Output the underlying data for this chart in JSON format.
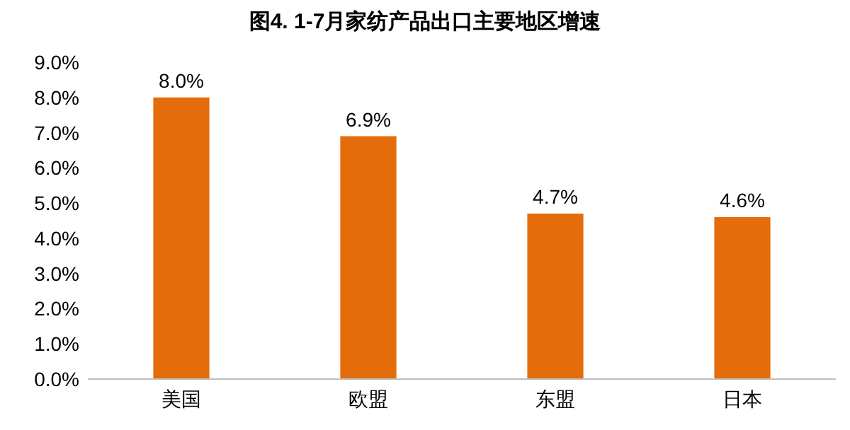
{
  "chart_data": {
    "type": "bar",
    "title": "图4. 1-7月家纺产品出口主要地区增速",
    "categories": [
      "美国",
      "欧盟",
      "东盟",
      "日本"
    ],
    "values": [
      8.0,
      6.9,
      4.7,
      4.6
    ],
    "color": "#e46c0a",
    "value_labels": [
      "8.0%",
      "6.9%",
      "4.7%",
      "4.6%"
    ],
    "ylim": [
      0,
      9
    ],
    "yticks": [
      {
        "value": 0,
        "label": "0.0%"
      },
      {
        "value": 1,
        "label": "1.0%"
      },
      {
        "value": 2,
        "label": "2.0%"
      },
      {
        "value": 3,
        "label": "3.0%"
      },
      {
        "value": 4,
        "label": "4.0%"
      },
      {
        "value": 5,
        "label": "5.0%"
      },
      {
        "value": 6,
        "label": "6.0%"
      },
      {
        "value": 7,
        "label": "7.0%"
      },
      {
        "value": 8,
        "label": "8.0%"
      },
      {
        "value": 9,
        "label": "9.0%"
      }
    ],
    "grid": false
  }
}
